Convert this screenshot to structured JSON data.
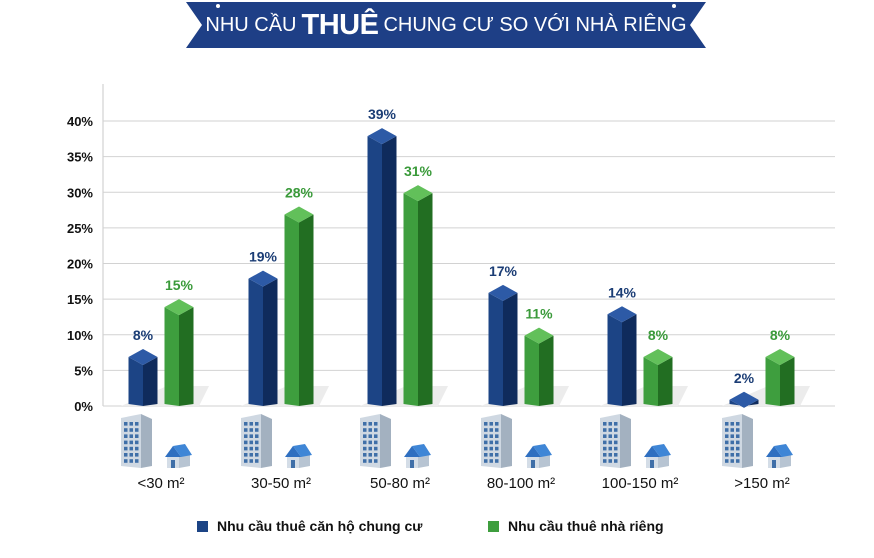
{
  "title": {
    "before": "NHU CẦU",
    "emphasis": "THUÊ",
    "after": "CHUNG CƯ SO VỚI NHÀ RIÊNG"
  },
  "colors": {
    "banner": "#1e3f86",
    "series1": "#1c4485",
    "series1_dark": "#0f2b5c",
    "series1_top": "#2d5aa6",
    "series2": "#3e9e3e",
    "series2_dark": "#226e22",
    "series2_top": "#62c05a",
    "series1_label": "#1b3d75",
    "series2_label": "#3a9a3a"
  },
  "chart_data": {
    "type": "bar",
    "categories": [
      "<30 m²",
      "30-50 m²",
      "50-80 m²",
      "80-100 m²",
      "100-150 m²",
      ">150 m²"
    ],
    "series": [
      {
        "name": "Nhu cầu thuê căn hộ chung cư",
        "values": [
          8,
          19,
          39,
          17,
          14,
          2
        ]
      },
      {
        "name": "Nhu cầu thuê nhà riêng",
        "values": [
          15,
          28,
          31,
          11,
          8,
          8
        ]
      }
    ],
    "data_labels": [
      [
        "8%",
        "19%",
        "39%",
        "17%",
        "14%",
        "2%"
      ],
      [
        "15%",
        "28%",
        "31%",
        "11%",
        "8%",
        "8%"
      ]
    ],
    "y_ticks": [
      "0%",
      "5%",
      "10%",
      "15%",
      "20%",
      "25%",
      "30%",
      "35%",
      "40%"
    ],
    "ylim": [
      0,
      40
    ],
    "grid": true,
    "legend_position": "bottom",
    "category_icons": [
      "apartment-building-icon",
      "house-icon"
    ]
  }
}
